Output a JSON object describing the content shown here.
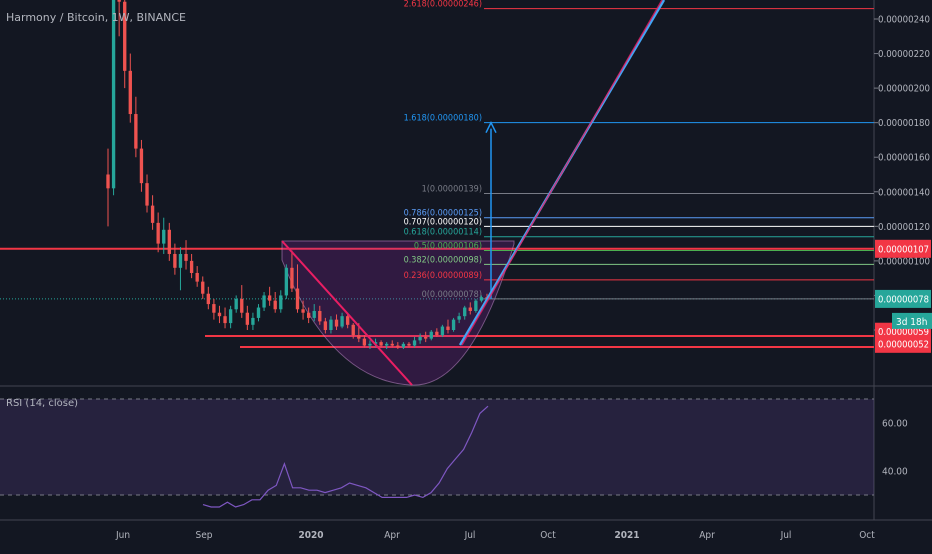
{
  "chart_data": [
    {
      "type": "candlestick",
      "title": "Harmony / Bitcoin, 1W, BINANCE",
      "x_tick_labels": [
        "Jun",
        "Sep",
        "2020",
        "Apr",
        "Jul",
        "Oct",
        "2021",
        "Apr",
        "Jul",
        "Oct"
      ],
      "y_tick_labels": [
        "0.00000240",
        "0.00000220",
        "0.00000200",
        "0.00000180",
        "0.00000160",
        "0.00000140",
        "0.00000120",
        "0.00000100",
        "0.00000080",
        "0.00000060"
      ],
      "ylim": [
        4.9e-07,
        2.52e-06
      ],
      "candles": [
        {
          "o": 1.5e-06,
          "h": 1.65e-06,
          "l": 1.2e-06,
          "c": 1.42e-06
        },
        {
          "o": 1.42e-06,
          "h": 2.6e-06,
          "l": 1.38e-06,
          "c": 2.6e-06
        },
        {
          "o": 2.6e-06,
          "h": 2.7e-06,
          "l": 2.3e-06,
          "c": 2.5e-06
        },
        {
          "o": 2.5e-06,
          "h": 2.55e-06,
          "l": 2e-06,
          "c": 2.1e-06
        },
        {
          "o": 2.1e-06,
          "h": 2.2e-06,
          "l": 1.8e-06,
          "c": 1.85e-06
        },
        {
          "o": 1.85e-06,
          "h": 1.95e-06,
          "l": 1.6e-06,
          "c": 1.65e-06
        },
        {
          "o": 1.65e-06,
          "h": 1.7e-06,
          "l": 1.4e-06,
          "c": 1.45e-06
        },
        {
          "o": 1.45e-06,
          "h": 1.5e-06,
          "l": 1.28e-06,
          "c": 1.32e-06
        },
        {
          "o": 1.32e-06,
          "h": 1.38e-06,
          "l": 1.18e-06,
          "c": 1.22e-06
        },
        {
          "o": 1.22e-06,
          "h": 1.28e-06,
          "l": 1.05e-06,
          "c": 1.1e-06
        },
        {
          "o": 1.1e-06,
          "h": 1.25e-06,
          "l": 1.04e-06,
          "c": 1.18e-06
        },
        {
          "o": 1.18e-06,
          "h": 1.22e-06,
          "l": 1e-06,
          "c": 1.04e-06
        },
        {
          "o": 1.04e-06,
          "h": 1.1e-06,
          "l": 9.2e-07,
          "c": 9.6e-07
        },
        {
          "o": 9.6e-07,
          "h": 1.08e-06,
          "l": 8.3e-07,
          "c": 1.04e-06
        },
        {
          "o": 1.04e-06,
          "h": 1.12e-06,
          "l": 9.5e-07,
          "c": 1e-06
        },
        {
          "o": 1e-06,
          "h": 1.04e-06,
          "l": 9e-07,
          "c": 9.3e-07
        },
        {
          "o": 9.3e-07,
          "h": 9.7e-07,
          "l": 8.5e-07,
          "c": 8.8e-07
        },
        {
          "o": 8.8e-07,
          "h": 9.1e-07,
          "l": 7.8e-07,
          "c": 8.1e-07
        },
        {
          "o": 8.1e-07,
          "h": 8.5e-07,
          "l": 7.2e-07,
          "c": 7.5e-07
        },
        {
          "o": 7.5e-07,
          "h": 7.8e-07,
          "l": 6.6e-07,
          "c": 7e-07
        },
        {
          "o": 7e-07,
          "h": 7.4e-07,
          "l": 6.4e-07,
          "c": 6.8e-07
        },
        {
          "o": 6.8e-07,
          "h": 7.3e-07,
          "l": 6.1e-07,
          "c": 6.4e-07
        },
        {
          "o": 6.4e-07,
          "h": 7.4e-07,
          "l": 6.1e-07,
          "c": 7.2e-07
        },
        {
          "o": 7.2e-07,
          "h": 8e-07,
          "l": 7e-07,
          "c": 7.8e-07
        },
        {
          "o": 7.8e-07,
          "h": 8.6e-07,
          "l": 6.7e-07,
          "c": 7e-07
        },
        {
          "o": 7e-07,
          "h": 7.4e-07,
          "l": 6e-07,
          "c": 6.3e-07
        },
        {
          "o": 6.3e-07,
          "h": 7e-07,
          "l": 6e-07,
          "c": 6.7e-07
        },
        {
          "o": 6.7e-07,
          "h": 7.5e-07,
          "l": 6.5e-07,
          "c": 7.3e-07
        },
        {
          "o": 7.3e-07,
          "h": 8.2e-07,
          "l": 7.1e-07,
          "c": 8e-07
        },
        {
          "o": 8e-07,
          "h": 8.5e-07,
          "l": 7.4e-07,
          "c": 7.7e-07
        },
        {
          "o": 7.7e-07,
          "h": 8.2e-07,
          "l": 7e-07,
          "c": 7.2e-07
        },
        {
          "o": 7.2e-07,
          "h": 8.3e-07,
          "l": 7e-07,
          "c": 8e-07
        },
        {
          "o": 8e-07,
          "h": 9.8e-07,
          "l": 7.8e-07,
          "c": 9.6e-07
        },
        {
          "o": 9.6e-07,
          "h": 1.06e-06,
          "l": 8.2e-07,
          "c": 8.4e-07
        },
        {
          "o": 8.4e-07,
          "h": 9.8e-07,
          "l": 7e-07,
          "c": 7.2e-07
        },
        {
          "o": 7.2e-07,
          "h": 7.7e-07,
          "l": 6.6e-07,
          "c": 7e-07
        },
        {
          "o": 7e-07,
          "h": 7.3e-07,
          "l": 6.4e-07,
          "c": 6.7e-07
        },
        {
          "o": 6.7e-07,
          "h": 7.5e-07,
          "l": 6.5e-07,
          "c": 7.1e-07
        },
        {
          "o": 7.1e-07,
          "h": 7.4e-07,
          "l": 6.3e-07,
          "c": 6.5e-07
        },
        {
          "o": 6.5e-07,
          "h": 6.7e-07,
          "l": 5.8e-07,
          "c": 6e-07
        },
        {
          "o": 6e-07,
          "h": 6.8e-07,
          "l": 5.8e-07,
          "c": 6.6e-07
        },
        {
          "o": 6.6e-07,
          "h": 6.9e-07,
          "l": 6e-07,
          "c": 6.2e-07
        },
        {
          "o": 6.2e-07,
          "h": 7e-07,
          "l": 6.1e-07,
          "c": 6.8e-07
        },
        {
          "o": 6.8e-07,
          "h": 7e-07,
          "l": 6.1e-07,
          "c": 6.3e-07
        },
        {
          "o": 6.3e-07,
          "h": 6.4e-07,
          "l": 5.5e-07,
          "c": 5.7e-07
        },
        {
          "o": 5.7e-07,
          "h": 6.4e-07,
          "l": 5.3e-07,
          "c": 5.5e-07
        },
        {
          "o": 5.5e-07,
          "h": 5.7e-07,
          "l": 5e-07,
          "c": 5.1e-07
        },
        {
          "o": 5.1e-07,
          "h": 5.4e-07,
          "l": 4.9e-07,
          "c": 5.2e-07
        },
        {
          "o": 5.2e-07,
          "h": 5.5e-07,
          "l": 5e-07,
          "c": 5.3e-07
        },
        {
          "o": 5.3e-07,
          "h": 5.4e-07,
          "l": 5e-07,
          "c": 5.1e-07
        },
        {
          "o": 5.1e-07,
          "h": 5.3e-07,
          "l": 4.9e-07,
          "c": 5.2e-07
        },
        {
          "o": 5.2e-07,
          "h": 5.4e-07,
          "l": 5e-07,
          "c": 5.1e-07
        },
        {
          "o": 5.1e-07,
          "h": 5.3e-07,
          "l": 4.9e-07,
          "c": 5e-07
        },
        {
          "o": 5e-07,
          "h": 5.3e-07,
          "l": 4.9e-07,
          "c": 5.2e-07
        },
        {
          "o": 5.2e-07,
          "h": 5.3e-07,
          "l": 5e-07,
          "c": 5.1e-07
        },
        {
          "o": 5.1e-07,
          "h": 5.6e-07,
          "l": 5e-07,
          "c": 5.4e-07
        },
        {
          "o": 5.4e-07,
          "h": 5.8e-07,
          "l": 5.2e-07,
          "c": 5.6e-07
        },
        {
          "o": 5.6e-07,
          "h": 5.9e-07,
          "l": 5.3e-07,
          "c": 5.5e-07
        },
        {
          "o": 5.5e-07,
          "h": 6e-07,
          "l": 5.4e-07,
          "c": 5.9e-07
        },
        {
          "o": 5.9e-07,
          "h": 6.1e-07,
          "l": 5.6e-07,
          "c": 5.7e-07
        },
        {
          "o": 5.7e-07,
          "h": 6.3e-07,
          "l": 5.6e-07,
          "c": 6.2e-07
        },
        {
          "o": 6.2e-07,
          "h": 6.6e-07,
          "l": 5.8e-07,
          "c": 6e-07
        },
        {
          "o": 6e-07,
          "h": 6.7e-07,
          "l": 5.9e-07,
          "c": 6.6e-07
        },
        {
          "o": 6.6e-07,
          "h": 7e-07,
          "l": 6.4e-07,
          "c": 6.8e-07
        },
        {
          "o": 6.8e-07,
          "h": 7.4e-07,
          "l": 6.6e-07,
          "c": 7.3e-07
        },
        {
          "o": 7.3e-07,
          "h": 7.6e-07,
          "l": 6.9e-07,
          "c": 7.1e-07
        },
        {
          "o": 7.1e-07,
          "h": 7.8e-07,
          "l": 7e-07,
          "c": 7.7e-07
        },
        {
          "o": 7.7e-07,
          "h": 8e-07,
          "l": 7.6e-07,
          "c": 7.9e-07
        },
        {
          "o": 7.9e-07,
          "h": 8.1e-07,
          "l": 7.7e-07,
          "c": 7.8e-07
        }
      ],
      "horizontal_levels": [
        1.07e-06,
        5.9e-07,
        5.2e-07,
        2.46e-06
      ],
      "fib_levels": [
        {
          "label": "2.618(0.00000246)",
          "value": 2.46e-06,
          "color": "#f23645"
        },
        {
          "label": "1.618(0.00000180)",
          "value": 1.8e-06,
          "color": "#2196f3"
        },
        {
          "label": "1(0.00000139)",
          "value": 1.39e-06,
          "color": "#787b86"
        },
        {
          "label": "0.786(0.00000125)",
          "value": 1.25e-06,
          "color": "#5b9cf6"
        },
        {
          "label": "0.707(0.00000120)",
          "value": 1.2e-06,
          "color": "#ffffff"
        },
        {
          "label": "0.618(0.00000114)",
          "value": 1.14e-06,
          "color": "#26a69a"
        },
        {
          "label": "0.5(0.00000106)",
          "value": 1.06e-06,
          "color": "#4caf50"
        },
        {
          "label": "0.382(0.00000098)",
          "value": 9.8e-07,
          "color": "#81c784"
        },
        {
          "label": "0.236(0.00000089)",
          "value": 8.9e-07,
          "color": "#f23645"
        },
        {
          "label": "0(0.00000078)",
          "value": 7.8e-07,
          "color": "#787b86"
        }
      ],
      "price_tags": [
        {
          "text": "0.00000107",
          "value": 1.07e-06,
          "color": "#f23645"
        },
        {
          "text": "0.00000078",
          "value": 7.8e-07,
          "color": "#26a69a"
        },
        {
          "text": "0.00000059",
          "value": 5.9e-07,
          "color": "#f23645"
        },
        {
          "text": "0.00000052",
          "value": 5.2e-07,
          "color": "#f23645"
        }
      ],
      "countdown": "3d 18h"
    },
    {
      "type": "line",
      "title": "RSI (14, close)",
      "y_tick_labels": [
        "60.00",
        "40.00"
      ],
      "ylim": [
        24,
        79
      ],
      "bands": [
        30,
        70
      ],
      "values": [
        26,
        25,
        25,
        27,
        25,
        26,
        28,
        28,
        32,
        34,
        43,
        33,
        33,
        32,
        32,
        31,
        32,
        33,
        35,
        34,
        33,
        31,
        29,
        29,
        29,
        29,
        30,
        29,
        31,
        35,
        41,
        45,
        49,
        56,
        64,
        67
      ]
    }
  ]
}
